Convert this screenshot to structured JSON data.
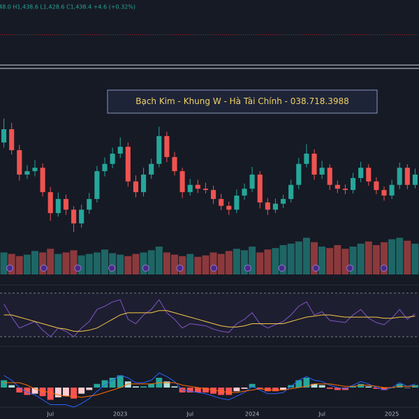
{
  "chart_data": {
    "type": "candlestick",
    "header": "48.0 H1,438.6 L1,428.6 C1,438.4 +4.6 (+0.32%)",
    "annotation": "Bạch Kim - Khung W - Hà Tài Chính - 038.718.3988",
    "categories": [
      null,
      null,
      null,
      null,
      null,
      null,
      "Jul",
      null,
      null,
      null,
      null,
      null,
      null,
      null,
      null,
      "2023",
      null,
      null,
      null,
      null,
      null,
      null,
      null,
      null,
      "Jul",
      null,
      null,
      null,
      null,
      null,
      null,
      null,
      "2024",
      null,
      null,
      null,
      null,
      null,
      null,
      null,
      null,
      "Jul",
      null,
      null,
      null,
      null,
      null,
      null,
      null,
      null,
      "2025",
      null,
      null,
      null
    ],
    "open": [
      1030,
      1061,
      1012,
      955,
      963,
      971,
      914,
      865,
      898,
      873,
      841,
      873,
      898,
      963,
      980,
      1004,
      1020,
      939,
      914,
      955,
      980,
      1045,
      996,
      963,
      914,
      931,
      922,
      919,
      898,
      882,
      873,
      906,
      922,
      955,
      890,
      873,
      887,
      898,
      931,
      980,
      1004,
      955,
      971,
      931,
      922,
      919,
      947,
      971,
      939,
      919,
      906,
      931,
      971,
      931
    ],
    "high": [
      1086,
      1076,
      1024,
      977,
      989,
      981,
      926,
      913,
      908,
      881,
      885,
      912,
      975,
      995,
      1018,
      1042,
      1030,
      953,
      971,
      992,
      1067,
      1055,
      1008,
      971,
      945,
      943,
      936,
      929,
      910,
      892,
      920,
      934,
      973,
      963,
      900,
      899,
      908,
      943,
      994,
      1026,
      1014,
      987,
      979,
      941,
      932,
      959,
      985,
      979,
      949,
      927,
      943,
      983,
      979,
      969
    ],
    "low": [
      1018,
      1002,
      941,
      945,
      951,
      904,
      847,
      857,
      861,
      821,
      831,
      863,
      890,
      951,
      970,
      994,
      927,
      902,
      904,
      945,
      972,
      984,
      953,
      900,
      906,
      912,
      911,
      886,
      872,
      861,
      865,
      896,
      914,
      876,
      861,
      865,
      877,
      890,
      921,
      972,
      943,
      945,
      919,
      912,
      909,
      911,
      937,
      929,
      909,
      894,
      898,
      921,
      921,
      923
    ],
    "close": [
      1061,
      1012,
      955,
      963,
      971,
      914,
      865,
      898,
      873,
      841,
      873,
      898,
      963,
      980,
      1004,
      1020,
      939,
      914,
      955,
      980,
      1045,
      996,
      963,
      914,
      931,
      922,
      919,
      898,
      882,
      873,
      906,
      922,
      955,
      890,
      873,
      887,
      898,
      931,
      980,
      1004,
      955,
      971,
      931,
      922,
      919,
      947,
      971,
      939,
      919,
      906,
      931,
      971,
      931,
      955
    ],
    "up_color": "#26a69a",
    "down_color": "#ef5350",
    "ylim": [
      800,
      1363
    ],
    "hlines": [
      {
        "value": 1282,
        "color": "#b22833",
        "style": "dotted"
      },
      {
        "value": 1211,
        "color": "#c9d1e0",
        "style": "solid"
      },
      {
        "value": 1203,
        "color": "#c9d1e0",
        "style": "solid"
      }
    ],
    "volume": [
      30,
      28,
      25,
      27,
      32,
      30,
      35,
      28,
      30,
      33,
      26,
      28,
      30,
      34,
      29,
      27,
      25,
      28,
      30,
      33,
      38,
      30,
      27,
      25,
      28,
      24,
      26,
      30,
      28,
      32,
      35,
      33,
      38,
      30,
      34,
      36,
      40,
      42,
      45,
      50,
      44,
      38,
      36,
      40,
      35,
      38,
      42,
      45,
      40,
      44,
      48,
      50,
      46,
      42
    ],
    "volume_ylim": [
      0,
      60
    ],
    "rsi": [
      60,
      48,
      38,
      41,
      44,
      36,
      30,
      38,
      35,
      30,
      38,
      44,
      55,
      58,
      62,
      64,
      46,
      42,
      50,
      55,
      64,
      52,
      46,
      38,
      42,
      41,
      40,
      37,
      35,
      34,
      42,
      46,
      52,
      42,
      38,
      41,
      44,
      50,
      58,
      62,
      50,
      53,
      45,
      44,
      43,
      50,
      55,
      47,
      43,
      41,
      47,
      55,
      46,
      51
    ],
    "rsi_ma": [
      50,
      50,
      48,
      46,
      44,
      42,
      40,
      38,
      37,
      35,
      35,
      36,
      38,
      42,
      46,
      50,
      52,
      52,
      52,
      52,
      54,
      54,
      52,
      50,
      48,
      46,
      44,
      42,
      40,
      39,
      39,
      40,
      42,
      42,
      42,
      42,
      42,
      44,
      46,
      48,
      49,
      50,
      50,
      49,
      48,
      48,
      48,
      48,
      48,
      47,
      47,
      48,
      48,
      49
    ],
    "rsi_color": "#7e57c2",
    "rsi_ma_color": "#f7c948",
    "rsi_levels": [
      30,
      70
    ],
    "rsi_ylim": [
      25,
      75
    ],
    "macd_hist": [
      12,
      4,
      -8,
      -12,
      -10,
      -14,
      -20,
      -16,
      -14,
      -18,
      -10,
      -4,
      6,
      12,
      16,
      20,
      10,
      2,
      2,
      6,
      16,
      10,
      2,
      -8,
      -8,
      -8,
      -8,
      -10,
      -12,
      -12,
      -6,
      -2,
      6,
      -2,
      -6,
      -6,
      -4,
      4,
      12,
      16,
      6,
      4,
      -2,
      -4,
      -4,
      2,
      6,
      2,
      -2,
      -4,
      0,
      6,
      0,
      4
    ],
    "macd": [
      20,
      12,
      0,
      -8,
      -12,
      -20,
      -28,
      -28,
      -28,
      -32,
      -26,
      -18,
      -6,
      4,
      12,
      20,
      16,
      8,
      8,
      12,
      24,
      18,
      10,
      -4,
      -6,
      -8,
      -10,
      -14,
      -18,
      -20,
      -14,
      -8,
      2,
      -4,
      -10,
      -10,
      -8,
      2,
      12,
      18,
      12,
      10,
      4,
      0,
      -2,
      4,
      10,
      6,
      0,
      -4,
      0,
      8,
      2,
      6
    ],
    "signal": [
      8,
      8,
      8,
      4,
      -2,
      -6,
      -8,
      -12,
      -14,
      -14,
      -16,
      -14,
      -12,
      -8,
      -4,
      0,
      6,
      6,
      6,
      6,
      8,
      8,
      8,
      4,
      2,
      0,
      -2,
      -4,
      -6,
      -8,
      -8,
      -6,
      -4,
      -2,
      -4,
      -4,
      -4,
      -2,
      0,
      2,
      6,
      6,
      6,
      4,
      2,
      2,
      4,
      4,
      2,
      0,
      0,
      2,
      2,
      2
    ],
    "macd_color": "#2962ff",
    "signal_color": "#ff6d00",
    "macd_ylim": [
      -40,
      40
    ]
  }
}
